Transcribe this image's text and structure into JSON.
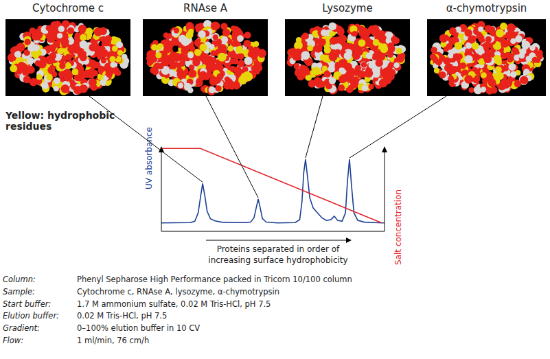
{
  "chart_data": {
    "type": "line",
    "x_label": "Proteins separated in order of\nincreasing surface hydrophobicity",
    "y_label": "UV absorbance",
    "y2_label": "Salt concentration",
    "xlim": [
      0,
      100
    ],
    "ylim": [
      0,
      100
    ],
    "y2lim": [
      0,
      100
    ],
    "grid": false,
    "tick_labels": false,
    "series": [
      {
        "name": "UV absorbance",
        "color": "#1b3f95",
        "x": [
          0,
          13,
          15,
          16.5,
          17.5,
          18.5,
          19.5,
          20.5,
          22,
          24,
          27,
          32,
          38,
          40,
          41.5,
          42.5,
          43.4,
          44.3,
          45.3,
          47,
          52,
          60,
          62,
          63,
          63.8,
          64.6,
          65.5,
          66.5,
          68,
          70,
          72,
          74,
          76,
          77.5,
          79,
          81,
          82.5,
          83.4,
          84.3,
          85.2,
          86.3,
          88,
          91,
          95,
          100
        ],
        "values": [
          10,
          10.5,
          12,
          22,
          40,
          57,
          42,
          24,
          15,
          12.5,
          11,
          10.5,
          10.5,
          11,
          16,
          28,
          38.5,
          28,
          15,
          11,
          10,
          10.5,
          14,
          35,
          70,
          86,
          65,
          40,
          28,
          22,
          16,
          13,
          14,
          18,
          13,
          12,
          22,
          60,
          86,
          55,
          22,
          13,
          11,
          10.5,
          10
        ]
      },
      {
        "name": "Salt concentration",
        "color": "#e3242b",
        "axis": "y2",
        "x": [
          0,
          17.5,
          98.8
        ],
        "values": [
          99,
          99,
          10
        ]
      }
    ],
    "annotations": [
      {
        "text": "Cytochrome c",
        "x": 18.5,
        "y": 57
      },
      {
        "text": "RNAse A",
        "x": 43.4,
        "y": 38.5
      },
      {
        "text": "Lysozyme",
        "x": 64.6,
        "y": 86
      },
      {
        "text": "α-chymotrypsin",
        "x": 84.3,
        "y": 86
      }
    ]
  },
  "image_key": "Yellow: hydrophobic residues",
  "conditions": [
    [
      "Column:",
      "Phenyl Sepharose High Performance packed in Tricorn 10/100 column"
    ],
    [
      "Sample:",
      "Cytochrome c, RNAse A, lysozyme, α-chymotrypsin"
    ],
    [
      "Start buffer:",
      "1.7 M ammonium sulfate, 0.02 M Tris-HCl, pH 7.5"
    ],
    [
      "Elution buffer:",
      "0.02 M Tris-HCl, pH 7.5"
    ],
    [
      "Gradient:",
      "0–100% elution buffer in 10 CV"
    ],
    [
      "Flow:",
      "1 ml/min, 76 cm/h"
    ]
  ]
}
